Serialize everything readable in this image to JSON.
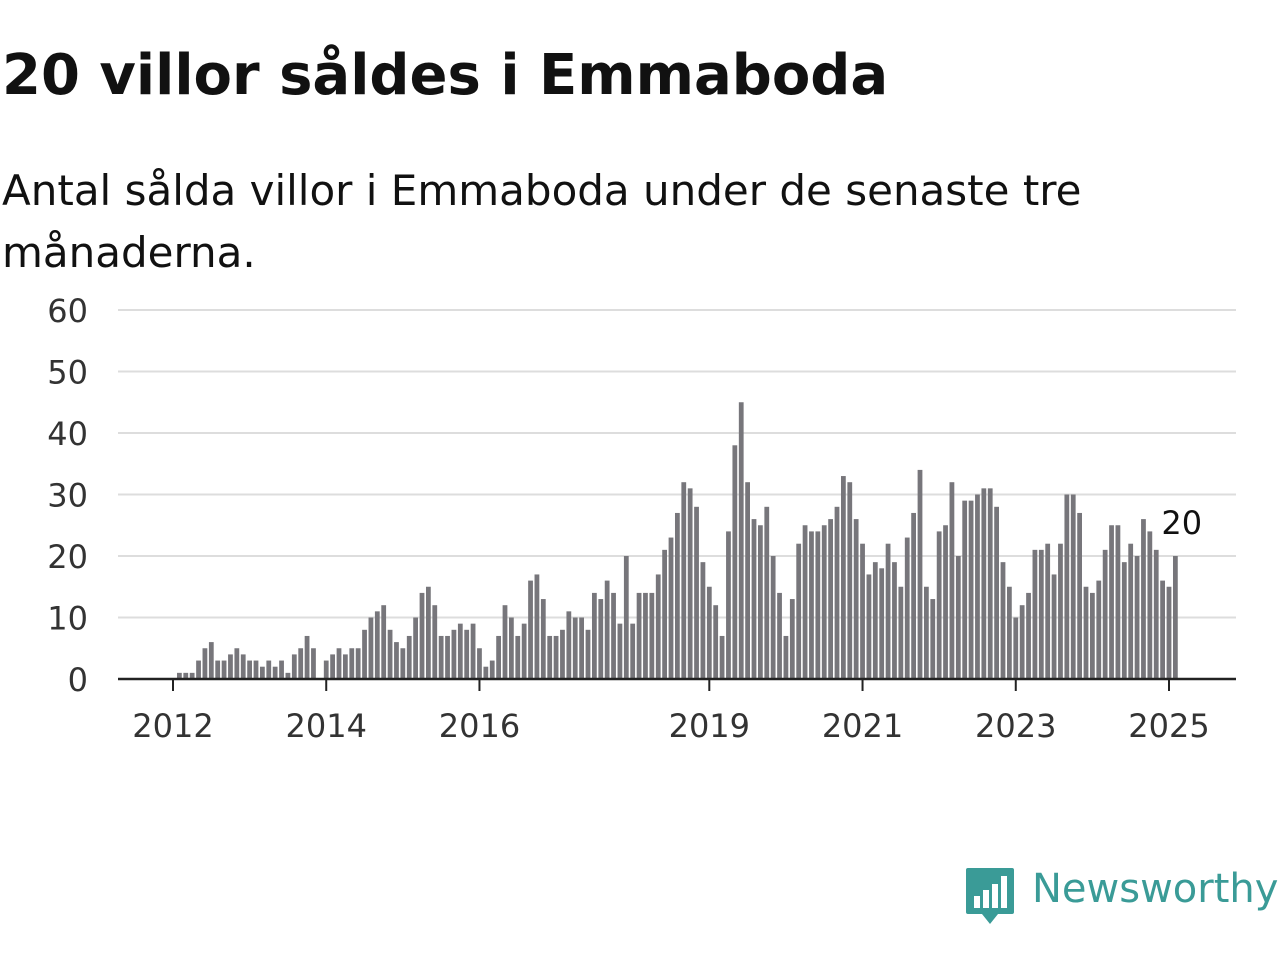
{
  "title": "20 villor såldes i Emmaboda",
  "subtitle": "Antal sålda villor i Emmaboda under de senaste tre månaderna.",
  "brand": {
    "name": "Newsworthy"
  },
  "colors": {
    "bar": "#77767b",
    "highlight": "#1a9e93",
    "grid": "#dddddd",
    "axis": "#222222",
    "brand": "#3a9b97"
  },
  "chart_data": {
    "type": "bar",
    "title": "20 villor såldes i Emmaboda",
    "subtitle": "Antal sålda villor i Emmaboda under de senaste tre månaderna.",
    "xlabel": "",
    "ylabel": "",
    "ylim": [
      0,
      60
    ],
    "yticks": [
      0,
      10,
      20,
      30,
      40,
      50,
      60
    ],
    "xticks": [
      "2012",
      "2014",
      "2016",
      "2019",
      "2021",
      "2023",
      "2025"
    ],
    "xtick_dates": [
      "2012-01",
      "2014-01",
      "2016-01",
      "2019-01",
      "2021-01",
      "2023-01",
      "2025-01"
    ],
    "grid": true,
    "highlight": {
      "date": "2025-03",
      "value": 20,
      "label": "20"
    },
    "series": [
      {
        "name": "",
        "start": "2011-06",
        "interval": "month",
        "values": [
          0,
          0,
          0,
          0,
          0,
          0,
          0,
          0,
          1,
          1,
          1,
          3,
          5,
          6,
          3,
          3,
          4,
          5,
          4,
          3,
          3,
          2,
          3,
          2,
          3,
          1,
          4,
          5,
          7,
          5,
          0,
          3,
          4,
          5,
          4,
          5,
          5,
          8,
          10,
          11,
          12,
          8,
          6,
          5,
          7,
          10,
          14,
          15,
          12,
          7,
          7,
          8,
          9,
          8,
          9,
          5,
          2,
          3,
          7,
          12,
          10,
          7,
          9,
          16,
          17,
          13,
          7,
          7,
          8,
          11,
          10,
          10,
          8,
          14,
          13,
          16,
          14,
          9,
          20,
          9,
          14,
          14,
          14,
          17,
          21,
          23,
          27,
          32,
          31,
          28,
          19,
          15,
          12,
          7,
          24,
          38,
          45,
          32,
          26,
          25,
          28,
          20,
          14,
          7,
          13,
          22,
          25,
          24,
          24,
          25,
          26,
          28,
          33,
          32,
          26,
          22,
          17,
          19,
          18,
          22,
          19,
          15,
          23,
          27,
          34,
          15,
          13,
          24,
          25,
          32,
          20,
          29,
          29,
          30,
          31,
          31,
          28,
          19,
          15,
          10,
          12,
          14,
          21,
          21,
          22,
          17,
          22,
          30,
          30,
          27,
          15,
          14,
          16,
          21,
          25,
          25,
          19,
          22,
          20,
          26,
          24,
          21,
          16,
          15,
          20
        ]
      }
    ]
  }
}
